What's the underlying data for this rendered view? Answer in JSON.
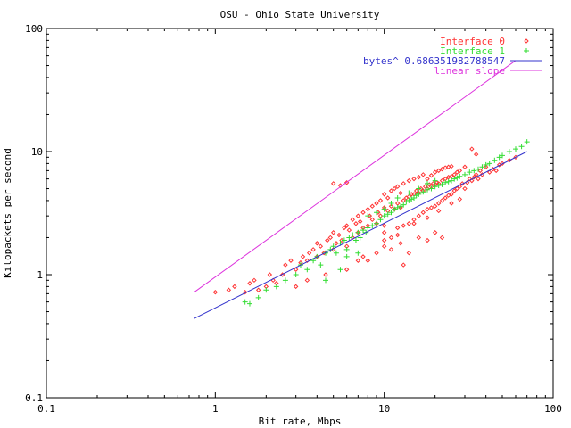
{
  "chart_data": {
    "type": "scatter",
    "title": "OSU - Ohio State University",
    "xlabel": "Bit rate, Mbps",
    "ylabel": "Kilopackets per second",
    "xscale": "log",
    "yscale": "log",
    "xlim": [
      0.1,
      100
    ],
    "ylim": [
      0.1,
      100
    ],
    "x_ticks": [
      "0.1",
      "1",
      "10",
      "100"
    ],
    "y_ticks": [
      "0.1",
      "1",
      "10",
      "100"
    ],
    "legend_position": "top-right",
    "series": [
      {
        "name": "Interface 0",
        "marker": "diamond",
        "color": "#ff3333",
        "x": [
          1.0,
          1.2,
          1.3,
          1.5,
          1.6,
          1.7,
          1.8,
          2.0,
          2.1,
          2.2,
          2.3,
          2.5,
          2.6,
          2.8,
          3.0,
          3.2,
          3.3,
          3.5,
          3.6,
          3.8,
          4.0,
          4.0,
          4.2,
          4.4,
          4.6,
          4.8,
          5.0,
          5.0,
          5.2,
          5.4,
          5.6,
          5.8,
          6.0,
          6.0,
          6.2,
          6.5,
          6.5,
          6.8,
          7.0,
          7.0,
          7.2,
          7.5,
          7.5,
          8.0,
          8.0,
          8.2,
          8.5,
          8.5,
          9.0,
          9.0,
          9.2,
          9.5,
          9.5,
          10.0,
          10.0,
          10.0,
          10.5,
          10.5,
          11.0,
          11.0,
          11.0,
          11.5,
          11.5,
          12.0,
          12.0,
          12.0,
          12.5,
          12.5,
          13.0,
          13.0,
          13.0,
          13.5,
          14.0,
          14.0,
          14.0,
          14.5,
          15.0,
          15.0,
          15.0,
          15.5,
          16.0,
          16.0,
          16.0,
          16.5,
          17.0,
          17.0,
          17.0,
          17.5,
          18.0,
          18.0,
          18.0,
          18.5,
          19.0,
          19.0,
          19.0,
          19.5,
          20.0,
          20.0,
          20.0,
          20.5,
          21.0,
          21.0,
          21.0,
          22.0,
          22.0,
          22.0,
          23.0,
          23.0,
          23.0,
          24.0,
          24.0,
          24.0,
          25.0,
          25.0,
          25.0,
          26.0,
          26.0,
          27.0,
          27.0,
          28.0,
          28.0,
          29.0,
          30.0,
          30.0,
          31.0,
          32.0,
          33.0,
          34.0,
          35.0,
          36.0,
          37.0,
          38.0,
          40.0,
          42.0,
          44.0,
          46.0,
          48.0,
          50.0,
          55.0,
          60.0,
          5.0,
          5.5,
          6.0,
          33.0,
          35.0,
          13.0,
          14.0,
          8.0,
          7.5,
          11.0,
          12.5,
          16.0,
          18.0,
          20.0,
          22.0,
          3.0,
          3.5,
          4.5,
          6.0,
          7.0,
          9.0,
          10.0,
          10.0,
          10.0,
          12.0,
          15.0,
          18.0,
          21.0,
          25.0,
          28.0
        ],
        "y": [
          0.72,
          0.75,
          0.8,
          0.72,
          0.85,
          0.9,
          0.75,
          0.8,
          1.0,
          0.9,
          0.85,
          1.0,
          1.2,
          1.3,
          1.1,
          1.25,
          1.4,
          1.3,
          1.5,
          1.6,
          1.4,
          1.8,
          1.7,
          1.5,
          1.9,
          2.0,
          1.6,
          2.2,
          1.8,
          2.1,
          1.9,
          2.4,
          1.7,
          2.5,
          2.3,
          2.0,
          2.8,
          2.6,
          2.2,
          3.0,
          2.7,
          2.4,
          3.2,
          2.5,
          3.4,
          3.0,
          2.8,
          3.6,
          2.6,
          3.8,
          3.2,
          3.0,
          4.0,
          2.2,
          3.5,
          4.5,
          3.3,
          4.2,
          2.0,
          3.6,
          4.8,
          3.4,
          5.0,
          2.4,
          3.8,
          5.2,
          3.5,
          4.6,
          2.5,
          4.0,
          5.5,
          4.2,
          2.6,
          4.3,
          5.8,
          4.5,
          2.8,
          4.5,
          6.0,
          4.8,
          3.0,
          4.6,
          6.2,
          5.0,
          3.2,
          4.8,
          6.5,
          5.2,
          3.4,
          5.0,
          6.0,
          5.4,
          3.5,
          5.2,
          6.4,
          5.5,
          3.6,
          5.4,
          6.8,
          5.6,
          3.8,
          5.5,
          7.0,
          4.0,
          5.8,
          7.2,
          4.2,
          6.0,
          7.4,
          4.4,
          6.2,
          7.5,
          4.5,
          6.3,
          7.6,
          4.8,
          6.5,
          5.0,
          6.8,
          5.2,
          7.0,
          5.5,
          5.0,
          7.5,
          5.6,
          6.0,
          5.8,
          6.2,
          6.5,
          6.0,
          7.0,
          6.5,
          7.5,
          6.8,
          7.2,
          7.0,
          7.8,
          8.0,
          8.5,
          9.0,
          5.5,
          5.3,
          5.6,
          10.5,
          9.5,
          1.2,
          1.5,
          1.3,
          1.4,
          1.6,
          1.8,
          2.0,
          1.9,
          2.2,
          2.0,
          0.8,
          0.9,
          1.0,
          1.1,
          1.3,
          1.5,
          1.7,
          2.5,
          1.9,
          2.1,
          2.6,
          2.9,
          3.3,
          3.8,
          4.1
        ]
      },
      {
        "name": "Interface 1",
        "marker": "plus",
        "color": "#33dd33",
        "x": [
          1.5,
          1.6,
          1.8,
          2.0,
          2.3,
          2.6,
          3.0,
          3.2,
          3.5,
          3.8,
          4.0,
          4.2,
          4.5,
          4.8,
          5.0,
          5.2,
          5.5,
          5.8,
          6.0,
          6.2,
          6.5,
          6.8,
          7.0,
          7.2,
          7.5,
          7.8,
          8.0,
          8.5,
          9.0,
          9.5,
          10.0,
          10.5,
          11.0,
          11.5,
          12.0,
          12.5,
          13.0,
          13.5,
          14.0,
          14.5,
          15.0,
          15.5,
          16.0,
          17.0,
          18.0,
          19.0,
          20.0,
          21.0,
          22.0,
          23.0,
          24.0,
          25.0,
          26.0,
          27.0,
          28.0,
          30.0,
          32.0,
          34.0,
          36.0,
          38.0,
          40.0,
          42.0,
          45.0,
          48.0,
          50.0,
          55.0,
          60.0,
          65.0,
          70.0,
          8.0,
          9.0,
          10.0,
          11.0,
          12.0,
          14.0,
          16.0,
          18.0,
          20.0,
          6.0,
          7.0,
          4.5,
          5.5
        ],
        "y": [
          0.6,
          0.58,
          0.65,
          0.75,
          0.8,
          0.9,
          1.0,
          1.2,
          1.1,
          1.3,
          1.4,
          1.2,
          1.5,
          1.6,
          1.7,
          1.5,
          1.8,
          1.9,
          1.6,
          2.0,
          2.1,
          1.9,
          2.2,
          2.0,
          2.3,
          2.2,
          2.4,
          2.5,
          2.6,
          2.8,
          3.0,
          3.1,
          3.2,
          3.4,
          3.5,
          3.6,
          3.7,
          3.9,
          4.0,
          4.1,
          4.2,
          4.4,
          4.5,
          4.7,
          4.9,
          5.0,
          5.2,
          5.3,
          5.4,
          5.6,
          5.7,
          5.8,
          6.0,
          6.1,
          6.3,
          6.5,
          6.8,
          7.0,
          7.2,
          7.5,
          7.8,
          8.0,
          8.5,
          9.0,
          9.3,
          10.0,
          10.5,
          11.0,
          12.0,
          3.0,
          3.2,
          3.4,
          3.8,
          4.2,
          4.6,
          5.0,
          5.5,
          5.8,
          1.4,
          1.5,
          0.9,
          1.1
        ]
      },
      {
        "name": "bytes^ 0.686351982788547",
        "marker": "line",
        "color": "#3333cc",
        "x": [
          0.75,
          70
        ],
        "y": [
          0.44,
          10
        ]
      },
      {
        "name": "linear slope",
        "marker": "line",
        "color": "#dd33dd",
        "x": [
          0.75,
          60
        ],
        "y": [
          0.72,
          55
        ]
      }
    ]
  }
}
